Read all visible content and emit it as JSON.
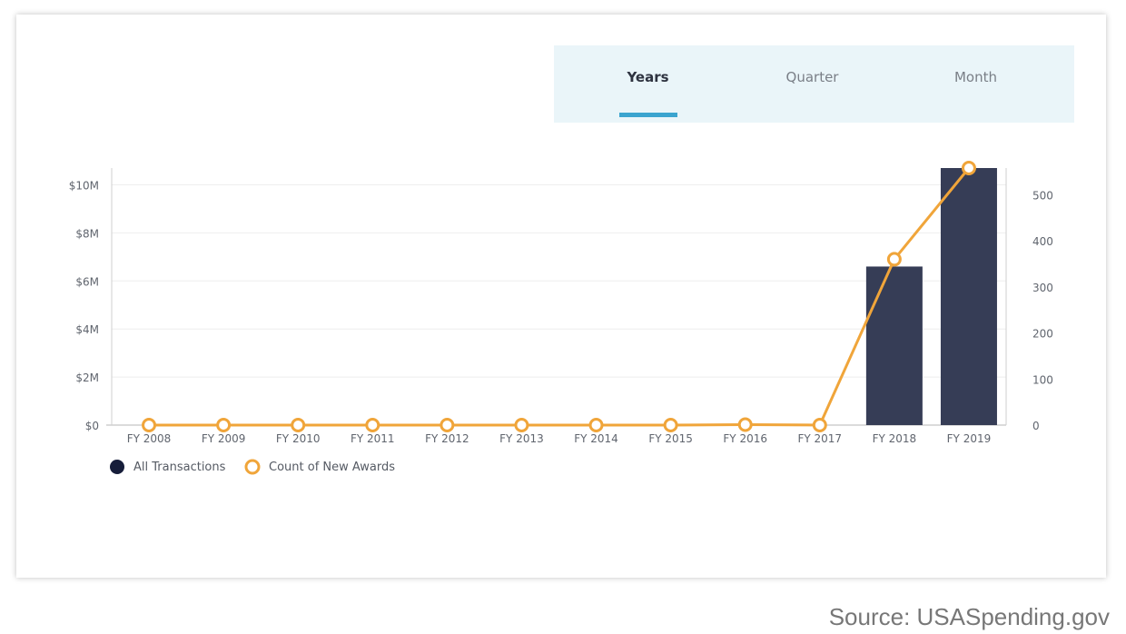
{
  "tabs": [
    {
      "label": "Years",
      "active": true
    },
    {
      "label": "Quarter",
      "active": false
    },
    {
      "label": "Month",
      "active": false
    }
  ],
  "source": "Source: USASpending.gov",
  "chart_data": {
    "type": "bar",
    "categories": [
      "FY 2008",
      "FY 2009",
      "FY 2010",
      "FY 2011",
      "FY 2012",
      "FY 2013",
      "FY 2014",
      "FY 2015",
      "FY 2016",
      "FY 2017",
      "FY 2018",
      "FY 2019"
    ],
    "series": [
      {
        "name": "All Transactions",
        "type": "bar",
        "axis": "left",
        "color": "#363d56",
        "values": [
          0,
          0,
          0,
          0,
          0,
          0,
          0,
          0,
          0,
          0,
          6600000,
          10700000
        ]
      },
      {
        "name": "Count of New Awards",
        "type": "line",
        "axis": "right",
        "color": "#f0a53a",
        "values": [
          0,
          0,
          0,
          0,
          0,
          0,
          0,
          0,
          1,
          0,
          360,
          558
        ]
      }
    ],
    "y_left": {
      "ticks": [
        0,
        2000000,
        4000000,
        6000000,
        8000000,
        10000000
      ],
      "tick_labels": [
        "$0",
        "$2M",
        "$4M",
        "$6M",
        "$8M",
        "$10M"
      ],
      "ylim": [
        0,
        10700000
      ]
    },
    "y_right": {
      "ticks": [
        0,
        100,
        200,
        300,
        400,
        500
      ],
      "tick_labels": [
        "0",
        "100",
        "200",
        "300",
        "400",
        "500"
      ],
      "ylim": [
        0,
        558
      ]
    },
    "grid": true,
    "legend_position": "bottom-left"
  }
}
